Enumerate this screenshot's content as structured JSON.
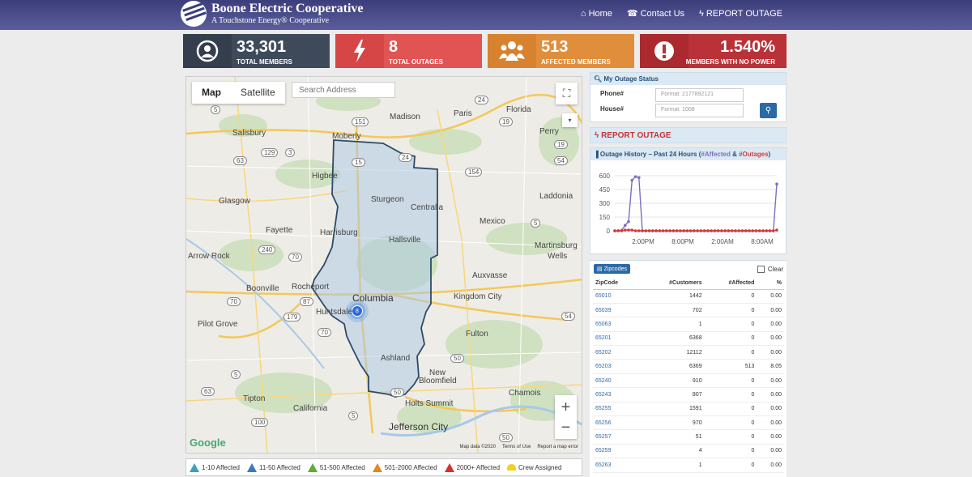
{
  "header": {
    "title": "Boone Electric Cooperative",
    "subtitle": "A Touchstone Energy® Cooperative",
    "nav": [
      {
        "label": "Home",
        "icon": "home-icon"
      },
      {
        "label": "Contact Us",
        "icon": "phone-icon"
      },
      {
        "label": "REPORT OUTAGE",
        "icon": "bolt-icon"
      }
    ]
  },
  "stats": [
    {
      "value": "33,301",
      "label": "TOTAL MEMBERS",
      "color": "#3e4a5a",
      "icon_color": "#343e4c",
      "icon": "user-icon"
    },
    {
      "value": "8",
      "label": "TOTAL OUTAGES",
      "color": "#e05454",
      "icon_color": "#d64646",
      "icon": "bolt-icon"
    },
    {
      "value": "513",
      "label": "AFFECTED MEMBERS",
      "color": "#e08e3c",
      "icon_color": "#d6822e",
      "icon": "users-icon"
    },
    {
      "value": "1.540%",
      "label": "MEMBERS WITH NO POWER",
      "color": "#b83238",
      "icon_color": "#ab2a30",
      "icon": "alert-icon"
    }
  ],
  "map": {
    "tab_map": "Map",
    "tab_satellite": "Satellite",
    "search_placeholder": "Search Address",
    "cluster_count": "8",
    "google": "Google",
    "footer": [
      "Map data ©2020",
      "Terms of Use",
      "Report a map error"
    ],
    "labels": [
      {
        "t": "Salisbury"
      },
      {
        "t": "Moberly"
      },
      {
        "t": "Madison"
      },
      {
        "t": "Paris"
      },
      {
        "t": "Florida"
      },
      {
        "t": "Perry"
      },
      {
        "t": "Higbee"
      },
      {
        "t": "Sturgeon"
      },
      {
        "t": "Centralia"
      },
      {
        "t": "Laddonia"
      },
      {
        "t": "Glasgow"
      },
      {
        "t": "Fayette"
      },
      {
        "t": "Harrisburg"
      },
      {
        "t": "Hallsville"
      },
      {
        "t": "Mexico"
      },
      {
        "t": "Martinsburg"
      },
      {
        "t": "Wells"
      },
      {
        "t": "Arrow Rock"
      },
      {
        "t": "Auxvasse"
      },
      {
        "t": "Boonville"
      },
      {
        "t": "Rocheport"
      },
      {
        "t": "Columbia"
      },
      {
        "t": "Huntsdale"
      },
      {
        "t": "Kingdom City"
      },
      {
        "t": "Pilot Grove"
      },
      {
        "t": "Fulton"
      },
      {
        "t": "Ashland"
      },
      {
        "t": "New"
      },
      {
        "t": "Bloomfield"
      },
      {
        "t": "Tipton"
      },
      {
        "t": "California"
      },
      {
        "t": "Holts Summit"
      },
      {
        "t": "Chamois"
      },
      {
        "t": "Jefferson City"
      }
    ],
    "shields": [
      "5",
      "24",
      "129",
      "3",
      "63",
      "151",
      "15",
      "24",
      "154",
      "19",
      "19",
      "54",
      "5",
      "240",
      "70",
      "70",
      "87",
      "179",
      "70",
      "54",
      "50",
      "63",
      "50",
      "5",
      "5",
      "100",
      "50"
    ]
  },
  "legend": [
    {
      "label": "1-10 Affected",
      "color": "#3aa3b8"
    },
    {
      "label": "11-50 Affected",
      "color": "#3a78c8"
    },
    {
      "label": "51-500 Affected",
      "color": "#5ab030"
    },
    {
      "label": "501-2000 Affected",
      "color": "#e08a20"
    },
    {
      "label": "2000+ Affected",
      "color": "#d83030"
    },
    {
      "label": "Crew Assigned",
      "color": "#f0d020"
    }
  ],
  "status": {
    "title": "My Outage Status",
    "phone_label": "Phone#",
    "phone_placeholder": "Format: 2177892121",
    "house_label": "House#",
    "house_placeholder": "Format: 1008"
  },
  "report": {
    "label": "REPORT OUTAGE"
  },
  "history": {
    "title_prefix": "Outage History – Past 24 Hours (",
    "affected_label": "#Affected",
    "amp": " & ",
    "outages_label": "#Outages",
    "title_suffix": ")"
  },
  "zipcodes": {
    "button": "Zipcodes",
    "clear": "Clear",
    "headers": [
      "ZipCode",
      "#Customers",
      "#Affected",
      "%"
    ],
    "rows": [
      [
        "65010",
        "1442",
        "0",
        "0.00"
      ],
      [
        "65039",
        "702",
        "0",
        "0.00"
      ],
      [
        "65063",
        "1",
        "0",
        "0.00"
      ],
      [
        "65201",
        "6368",
        "0",
        "0.00"
      ],
      [
        "65202",
        "12112",
        "0",
        "0.00"
      ],
      [
        "65203",
        "6369",
        "513",
        "8.05"
      ],
      [
        "65240",
        "910",
        "0",
        "0.00"
      ],
      [
        "65243",
        "807",
        "0",
        "0.00"
      ],
      [
        "65255",
        "1591",
        "0",
        "0.00"
      ],
      [
        "65256",
        "970",
        "0",
        "0.00"
      ],
      [
        "65257",
        "51",
        "0",
        "0.00"
      ],
      [
        "65259",
        "4",
        "0",
        "0.00"
      ],
      [
        "65263",
        "1",
        "0",
        "0.00"
      ]
    ]
  },
  "chart_data": {
    "type": "line",
    "title": "",
    "xlabel": "",
    "ylabel": "",
    "ylim": [
      0,
      600
    ],
    "yticks": [
      0,
      150,
      300,
      450,
      600
    ],
    "xtick_labels": [
      "2:00PM",
      "8:00PM",
      "2:00AM",
      "8:00AM"
    ],
    "grid": true,
    "series": [
      {
        "name": "#Affected",
        "color": "#7b6fc4",
        "values": [
          0,
          0,
          5,
          60,
          100,
          550,
          590,
          580,
          0,
          0,
          0,
          0,
          0,
          0,
          0,
          0,
          0,
          0,
          0,
          0,
          0,
          0,
          0,
          0,
          0,
          0,
          0,
          0,
          0,
          0,
          0,
          0,
          0,
          0,
          0,
          0,
          0,
          0,
          0,
          0,
          0,
          0,
          0,
          0,
          0,
          0,
          0,
          510
        ]
      },
      {
        "name": "#Outages",
        "color": "#d43a3a",
        "values": [
          0,
          0,
          0,
          8,
          8,
          8,
          0,
          0,
          0,
          0,
          0,
          0,
          0,
          0,
          0,
          0,
          0,
          0,
          0,
          0,
          0,
          0,
          0,
          0,
          0,
          0,
          0,
          0,
          0,
          0,
          0,
          0,
          0,
          0,
          0,
          0,
          0,
          0,
          0,
          0,
          0,
          0,
          0,
          0,
          0,
          0,
          0,
          8
        ]
      }
    ]
  }
}
